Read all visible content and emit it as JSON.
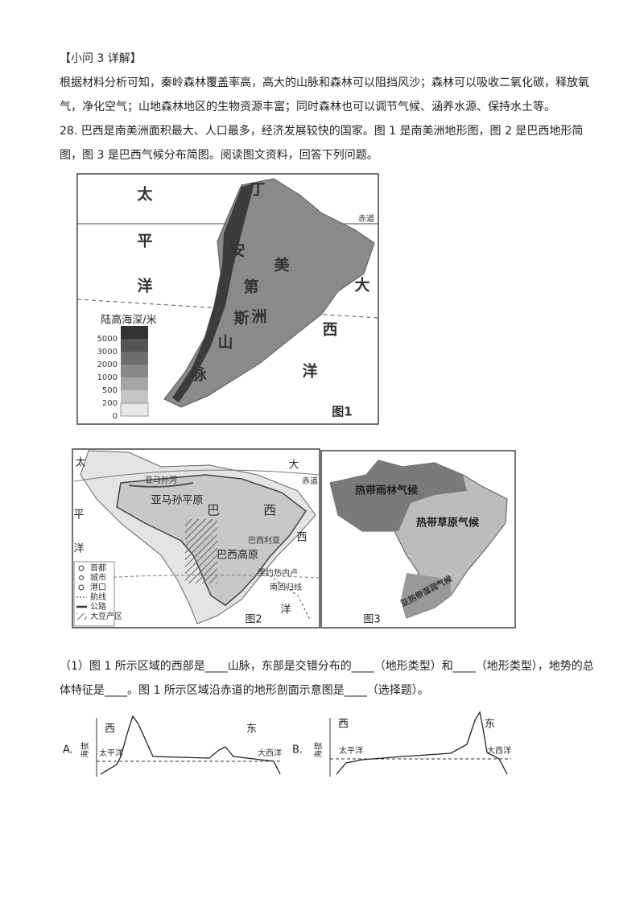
{
  "section_title": "【小问 3 详解】",
  "paragraphs": [
    "根据材料分析可知，秦岭森林覆盖率高，高大的山脉和森林可以阻挡风沙；森林可以吸收二氧化碳，释放氧气，净化空气；山地森林地区的生物资源丰富；同时森林也可以调节气候、涵养水源、保持水土等。",
    "28. 巴西是南美洲面积最大、人口最多，经济发展较快的国家。图 1 是南美洲地形图，图 2 是巴西地形简图，图 3 是巴西气候分布简图。阅读图文资料，回答下列问题。"
  ],
  "figure1": {
    "labels": [
      "太",
      "平",
      "洋",
      "丁",
      "安",
      "第",
      "斯",
      "山",
      "脉",
      "美",
      "洲",
      "大",
      "西",
      "洋",
      "赤道"
    ],
    "legend_title": "陆高海深/米",
    "legend_ticks": [
      5000,
      3000,
      2000,
      1000,
      500,
      200,
      0
    ],
    "caption": "图1"
  },
  "figure2": {
    "labels": [
      "太",
      "平",
      "洋",
      "大",
      "西",
      "洋",
      "赤道",
      "亚马孙河",
      "亚马孙平原",
      "巴",
      "西",
      "巴西利亚",
      "巴西高原",
      "里约热内卢",
      "南回归线"
    ],
    "legend": [
      "首都",
      "城市",
      "港口",
      "航线",
      "公路",
      "大豆产区"
    ],
    "caption": "图2"
  },
  "figure3": {
    "labels": [
      "热带雨林气候",
      "热带草原气候",
      "亚热带湿润气候"
    ],
    "caption": "图3"
  },
  "question": "（1）图 1 所示区域的西部是____山脉，东部是交错分布的____（地形类型）和____（地形类型），地势的总体特征是____。图 1 所示区域沿赤道的地形剖面示意图是____（选择题）。",
  "options": [
    {
      "letter": "A.",
      "axis": "海拔",
      "west": "西",
      "east": "东",
      "left_ocean": "太平洋",
      "right_ocean": "大西洋"
    },
    {
      "letter": "B.",
      "axis": "海拔",
      "west": "西",
      "east": "东",
      "left_ocean": "太平洋",
      "right_ocean": "大西洋"
    }
  ]
}
